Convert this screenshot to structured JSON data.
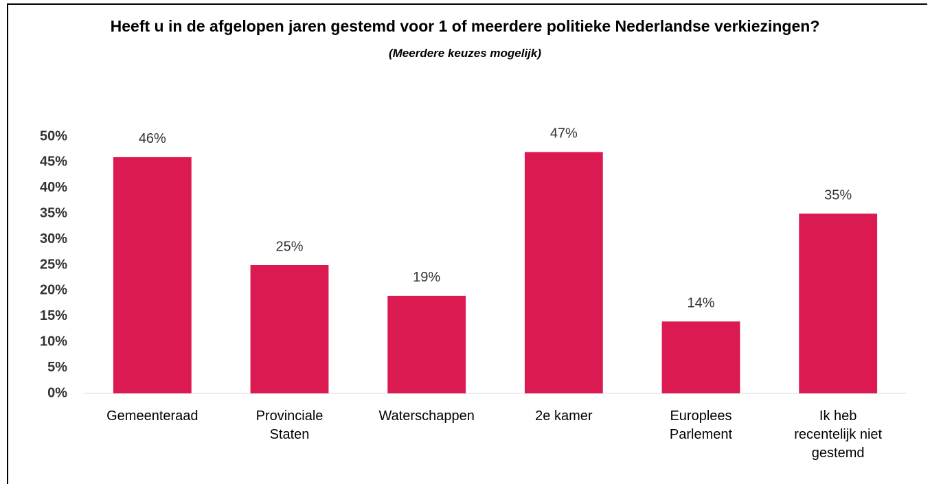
{
  "chart_data": {
    "type": "bar",
    "title": "Heeft u in de afgelopen jaren gestemd voor 1 of meerdere politieke Nederlandse verkiezingen?",
    "subtitle": "(Meerdere keuzes mogelijk)",
    "categories": [
      "Gemeenteraad",
      "Provinciale Staten",
      "Waterschappen",
      "2e kamer",
      "Europlees Parlement",
      "Ik heb recentelijk niet gestemd"
    ],
    "values": [
      46,
      25,
      19,
      47,
      14,
      35
    ],
    "value_labels": [
      "46%",
      "25%",
      "19%",
      "47%",
      "14%",
      "35%"
    ],
    "color": "#dc1a52",
    "ylim": [
      0,
      50
    ],
    "yticks": [
      {
        "value": 0,
        "label": "0%"
      },
      {
        "value": 5,
        "label": "5%"
      },
      {
        "value": 10,
        "label": "10%"
      },
      {
        "value": 15,
        "label": "15%"
      },
      {
        "value": 20,
        "label": "20%"
      },
      {
        "value": 25,
        "label": "25%"
      },
      {
        "value": 30,
        "label": "30%"
      },
      {
        "value": 35,
        "label": "35%"
      },
      {
        "value": 40,
        "label": "40%"
      },
      {
        "value": 45,
        "label": "45%"
      },
      {
        "value": 50,
        "label": "50%"
      }
    ],
    "grid": false
  }
}
